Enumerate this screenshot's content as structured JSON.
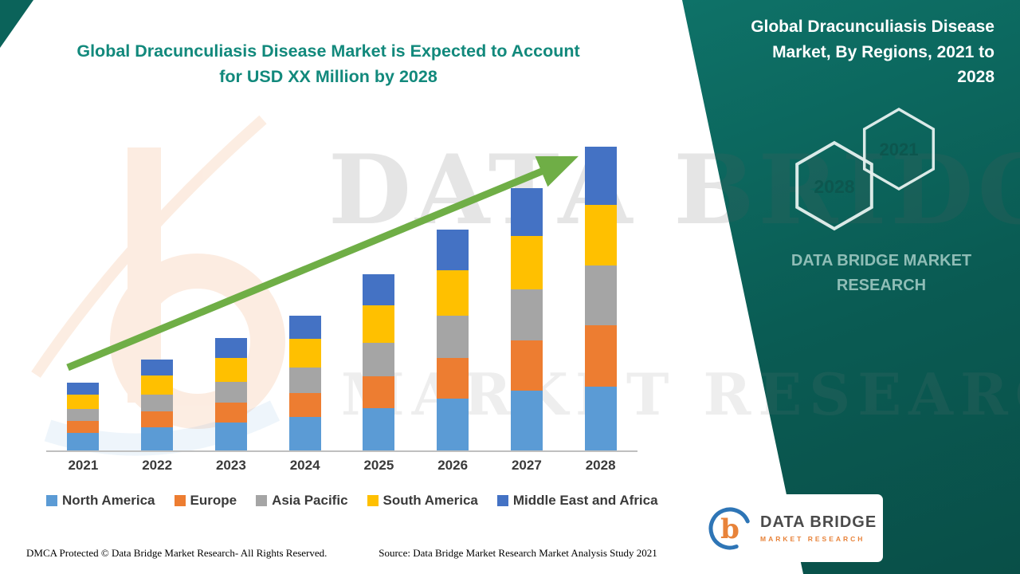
{
  "page": {
    "title_line1": "Global Dracunculiasis Disease Market is Expected to Account",
    "title_line2": "for USD XX Million by 2028",
    "footer_left": "DMCA Protected © Data Bridge Market Research- All Rights Reserved.",
    "footer_source": "Source: Data Bridge Market Research Market Analysis Study 2021"
  },
  "side_panel": {
    "title": "Global Dracunculiasis Disease Market, By Regions, 2021 to 2028",
    "hex_year_top": "2021",
    "hex_year_bottom": "2028",
    "brand_text": "DATA BRIDGE MARKET RESEARCH",
    "panel_color": "#0b635a"
  },
  "watermark": {
    "line1": "DATA BRIDGE",
    "line2": "MARKET RESEARCH"
  },
  "logo": {
    "mark_letter": "b",
    "name": "DATA BRIDGE",
    "subtitle": "MARKET RESEARCH"
  },
  "colors": {
    "title_teal": "#12897C",
    "arrow_green": "#6FAE46",
    "panel_teal": "#0b635a"
  },
  "chart_data": {
    "type": "bar",
    "stacked": true,
    "title": "Global Dracunculiasis Disease Market is Expected to Account for USD XX Million by 2028",
    "xlabel": "",
    "ylabel": "",
    "value_axis_visible": false,
    "grid": false,
    "legend_position": "bottom",
    "categories": [
      "2021",
      "2022",
      "2023",
      "2024",
      "2025",
      "2026",
      "2027",
      "2028"
    ],
    "series": [
      {
        "name": "North America",
        "color": "#5B9BD5",
        "values": [
          2.2,
          2.9,
          3.5,
          4.2,
          5.3,
          6.5,
          7.5,
          8.0
        ]
      },
      {
        "name": "Europe",
        "color": "#ED7D31",
        "values": [
          1.5,
          2.0,
          2.5,
          3.0,
          4.0,
          5.1,
          6.3,
          7.7
        ]
      },
      {
        "name": "Asia Pacific",
        "color": "#A5A5A5",
        "values": [
          1.5,
          2.1,
          2.6,
          3.2,
          4.2,
          5.3,
          6.5,
          7.6
        ]
      },
      {
        "name": "South America",
        "color": "#FFC000",
        "values": [
          1.8,
          2.4,
          3.0,
          3.6,
          4.7,
          5.8,
          6.7,
          7.6
        ]
      },
      {
        "name": "Middle East and Africa",
        "color": "#4472C4",
        "values": [
          1.5,
          2.1,
          2.6,
          3.0,
          4.0,
          5.1,
          6.0,
          7.3
        ]
      }
    ],
    "totals_estimated_usd_xx_million": [
      8.5,
      11.5,
      14.2,
      17.0,
      22.2,
      27.8,
      33.0,
      38.2
    ],
    "trend_arrow": true
  }
}
